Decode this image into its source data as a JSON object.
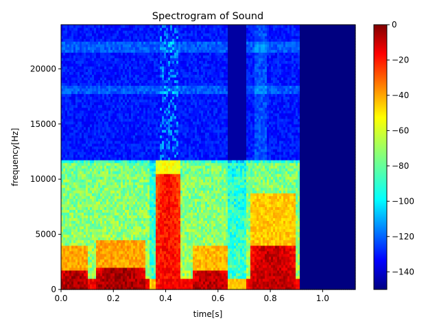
{
  "chart_data": {
    "type": "heatmap",
    "title": "Spectrogram of Sound",
    "xlabel": "time[s]",
    "ylabel": "frequency[Hz]",
    "xlim": [
      0.0,
      1.125
    ],
    "ylim": [
      0,
      24000
    ],
    "x_ticks": [
      0.0,
      0.2,
      0.4,
      0.6,
      0.8,
      1.0
    ],
    "x_tick_labels": [
      "0.0",
      "0.2",
      "0.4",
      "0.6",
      "0.8",
      "1.0"
    ],
    "y_ticks": [
      0,
      5000,
      10000,
      15000,
      20000
    ],
    "y_tick_labels": [
      "0",
      "5000",
      "10000",
      "15000",
      "20000"
    ],
    "colorbar": {
      "colormap": "jet",
      "vmin": -150,
      "vmax": 0,
      "ticks": [
        0,
        -20,
        -40,
        -60,
        -80,
        -100,
        -120,
        -140
      ],
      "tick_labels": [
        "0",
        "−20",
        "−40",
        "−60",
        "−80",
        "−100",
        "−120",
        "−140"
      ]
    },
    "sound_end_time": 0.91,
    "noise_cutoff_hz": 11800,
    "pause_segments": [
      [
        0.34,
        0.38
      ],
      [
        0.64,
        0.71
      ]
    ],
    "low_freq_energy_bursts": [
      {
        "t": [
          0.0,
          0.1
        ],
        "f_max": 1800,
        "level_db": -5
      },
      {
        "t": [
          0.13,
          0.32
        ],
        "f_max": 2000,
        "level_db": -5
      },
      {
        "t": [
          0.36,
          0.46
        ],
        "f_max": 10500,
        "level_db": -20
      },
      {
        "t": [
          0.5,
          0.64
        ],
        "f_max": 1800,
        "level_db": -8
      },
      {
        "t": [
          0.72,
          0.9
        ],
        "f_max": 4000,
        "level_db": -10
      }
    ]
  }
}
